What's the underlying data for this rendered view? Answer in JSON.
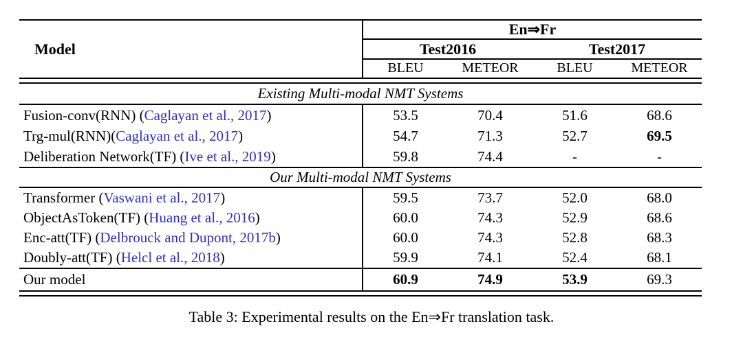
{
  "colors": {
    "citation_link": "#2e2ec9",
    "text": "#000000",
    "background": "#ffffff"
  },
  "table": {
    "header": {
      "model": "Model",
      "group": "En⇒Fr",
      "subgroups": [
        "Test2016",
        "Test2017"
      ],
      "metrics": [
        "BLEU",
        "METEOR",
        "BLEU",
        "METEOR"
      ]
    },
    "section1": {
      "title": "Existing Multi-modal NMT Systems",
      "rows": [
        {
          "model": {
            "prefix": "Fusion-conv(RNN) (",
            "citation": "Caglayan et al., 2017",
            "suffix": ")"
          },
          "values": [
            "53.5",
            "70.4",
            "51.6",
            "68.6"
          ]
        },
        {
          "model": {
            "prefix": "Trg-mul(RNN)(",
            "citation": "Caglayan et al., 2017",
            "suffix": ")"
          },
          "values": [
            "54.7",
            "71.3",
            "52.7",
            "69.5"
          ]
        },
        {
          "model": {
            "prefix": "Deliberation Network(TF) (",
            "citation": "Ive et al., 2019",
            "suffix": ")"
          },
          "values": [
            "59.8",
            "74.4",
            "-",
            "-"
          ]
        }
      ]
    },
    "section2": {
      "title": "Our Multi-modal NMT Systems",
      "rows": [
        {
          "model": {
            "prefix": "Transformer (",
            "citation": "Vaswani et al., 2017",
            "suffix": ")"
          },
          "values": [
            "59.5",
            "73.7",
            "52.0",
            "68.0"
          ]
        },
        {
          "model": {
            "prefix": "ObjectAsToken(TF) (",
            "citation": "Huang et al., 2016",
            "suffix": ")"
          },
          "values": [
            "60.0",
            "74.3",
            "52.9",
            "68.6"
          ]
        },
        {
          "model": {
            "prefix": "Enc-att(TF) (",
            "citation": "Delbrouck and Dupont, 2017b",
            "suffix": ")"
          },
          "values": [
            "60.0",
            "74.3",
            "52.8",
            "68.3"
          ]
        },
        {
          "model": {
            "prefix": "Doubly-att(TF) (",
            "citation": "Helcl et al., 2018",
            "suffix": ")"
          },
          "values": [
            "59.9",
            "74.1",
            "52.4",
            "68.1"
          ]
        }
      ]
    },
    "final_row": {
      "model": {
        "prefix": "Our model",
        "citation": "",
        "suffix": ""
      },
      "values": [
        "60.9",
        "74.9",
        "53.9",
        "69.3"
      ]
    }
  },
  "caption": "Table 3: Experimental results on the En⇒Fr translation task."
}
